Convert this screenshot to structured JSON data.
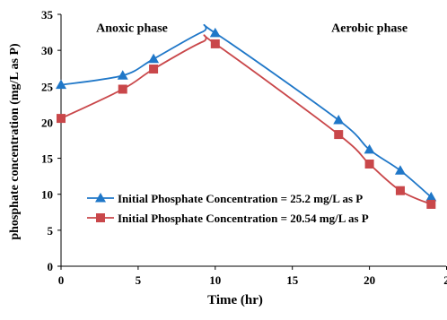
{
  "chart_data": {
    "type": "line",
    "title": "",
    "xlabel": "Time (hr)",
    "ylabel": "phosphate concentration (mg/L as P)",
    "xlim": [
      0,
      25
    ],
    "ylim": [
      0,
      35
    ],
    "x_ticks": [
      "0",
      "5",
      "10",
      "15",
      "20",
      "2"
    ],
    "y_ticks": [
      "0",
      "5",
      "10",
      "15",
      "20",
      "25",
      "30",
      "35"
    ],
    "grid": false,
    "legend_position": "lower-left",
    "annotations": [
      {
        "text": "Anoxic phase",
        "x": 4.6,
        "y": 32.6
      },
      {
        "text": "Aerobic phase",
        "x": 20.0,
        "y": 32.6
      }
    ],
    "series": [
      {
        "name": "Initial Phosphate Concentration = 25.2 mg/L as P",
        "color": "#1f77c8",
        "marker": "triangle",
        "x": [
          0,
          4,
          6,
          10,
          18,
          20,
          22,
          24
        ],
        "y": [
          25.2,
          26.5,
          28.8,
          32.4,
          20.3,
          16.2,
          13.3,
          9.6
        ],
        "peak": {
          "x": 9.2,
          "y": 32.6
        }
      },
      {
        "name": "Initial Phosphate Concentration = 20.54 mg/L as P",
        "color": "#c9474a",
        "marker": "square",
        "x": [
          0,
          4,
          6,
          10,
          18,
          20,
          22,
          24
        ],
        "y": [
          20.54,
          24.6,
          27.4,
          30.9,
          18.3,
          14.2,
          10.5,
          8.6
        ],
        "peak": {
          "x": 9.2,
          "y": 31.2
        }
      }
    ]
  }
}
